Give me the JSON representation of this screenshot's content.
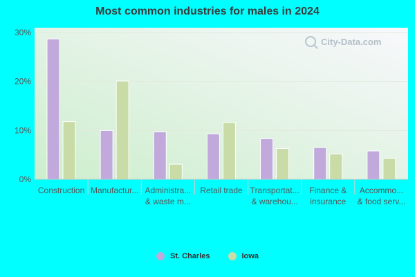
{
  "chart_data": {
    "type": "bar",
    "title": "Most common industries for males in 2024",
    "categories": [
      [
        "Construction"
      ],
      [
        "Manufactur..."
      ],
      [
        "Administra...",
        "& waste m..."
      ],
      [
        "Retail trade"
      ],
      [
        "Transportat...",
        "& warehou..."
      ],
      [
        "Finance &",
        "insurance"
      ],
      [
        "Accommo...",
        "& food serv..."
      ]
    ],
    "series": [
      {
        "name": "St. Charles",
        "values": [
          28.7,
          10.0,
          9.7,
          9.3,
          8.3,
          6.5,
          5.8
        ],
        "color": "#c1a9dc"
      },
      {
        "name": "Iowa",
        "values": [
          11.8,
          20.1,
          3.1,
          11.6,
          6.3,
          5.2,
          4.3
        ],
        "color": "#c9dba6"
      }
    ],
    "ylim": [
      0,
      30
    ],
    "yticks": [
      0,
      10,
      20,
      30
    ],
    "ytick_labels": [
      "0%",
      "10%",
      "20%",
      "30%"
    ],
    "grid": true,
    "legend_position": "bottom"
  },
  "watermark": "City-Data.com"
}
